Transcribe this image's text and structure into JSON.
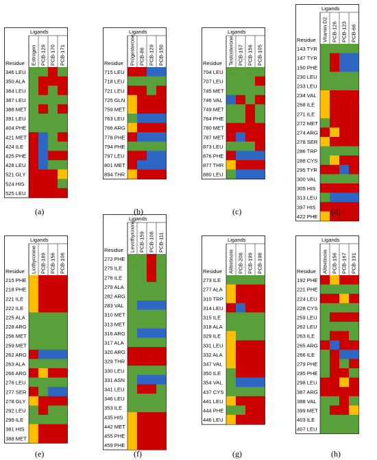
{
  "colors": {
    "green": "#5aa03a",
    "red": "#cc0000",
    "blue": "#2e66c4",
    "yellow": "#ffbf00"
  },
  "common": {
    "ligands_header": "Ligands",
    "residue_header": "Residue"
  },
  "panels": [
    {
      "caption": "(a)",
      "ligands": [
        "Estrogen",
        "PCB-129",
        "PCB-170",
        "PCB-171"
      ],
      "residues": [
        "346 LEU",
        "350 ALA",
        "384 LEU",
        "387 LEU",
        "388 MET",
        "391 LEU",
        "404 PHE",
        "421 MET",
        "424 ILE",
        "425 PHE",
        "428 LEU",
        "521 GLY",
        "524 HIS",
        "525 LEU"
      ],
      "cells": [
        [
          "G",
          "G",
          "R",
          "G"
        ],
        [
          "G",
          "R",
          "R",
          "R"
        ],
        [
          "G",
          "R",
          "G",
          "R"
        ],
        [
          "G",
          "G",
          "G",
          "G"
        ],
        [
          "G",
          "R",
          "G",
          "R"
        ],
        [
          "G",
          "G",
          "G",
          "G"
        ],
        [
          "G",
          "G",
          "G",
          "G"
        ],
        [
          "R",
          "B",
          "G",
          "R"
        ],
        [
          "R",
          "B",
          "G",
          "G"
        ],
        [
          "R",
          "B",
          "R",
          "R"
        ],
        [
          "R",
          "B",
          "G",
          "G"
        ],
        [
          "R",
          "R",
          "R",
          "Y"
        ],
        [
          "R",
          "R",
          "R",
          "G"
        ],
        [
          "R",
          "R",
          "R",
          "R"
        ]
      ]
    },
    {
      "caption": "(b)",
      "ligands": [
        "Progesterone",
        "PCB-86",
        "PCB-129",
        "PCB-150"
      ],
      "residues": [
        "715 LEU",
        "718 LEU",
        "721 LEU",
        "725 GLN",
        "759 MET",
        "763 LEU",
        "766 ARG",
        "778 PHE",
        "794 PHE",
        "797 LEU",
        "801 MET",
        "894 THR"
      ],
      "cells": [
        [
          "R",
          "R",
          "B",
          "B"
        ],
        [
          "G",
          "G",
          "G",
          "G"
        ],
        [
          "R",
          "R",
          "G",
          "R"
        ],
        [
          "Y",
          "R",
          "R",
          "R"
        ],
        [
          "Y",
          "R",
          "R",
          "R"
        ],
        [
          "G",
          "B",
          "B",
          "B"
        ],
        [
          "Y",
          "R",
          "R",
          "R"
        ],
        [
          "R",
          "B",
          "B",
          "B"
        ],
        [
          "G",
          "G",
          "G",
          "G"
        ],
        [
          "R",
          "R",
          "B",
          "B"
        ],
        [
          "R",
          "B",
          "B",
          "B"
        ],
        [
          "Y",
          "R",
          "R",
          "R"
        ]
      ]
    },
    {
      "caption": "(c)",
      "ligands": [
        "Testosterone",
        "PCB-157",
        "PCB-156",
        "PCB-105"
      ],
      "residues": [
        "704 LEU",
        "707 LEU",
        "745 MET",
        "746 VAL",
        "749 MET",
        "764 PHE",
        "780 MET",
        "787 MET",
        "873 LEU",
        "876 PHE",
        "877 THR",
        "880 LEU"
      ],
      "cells": [
        [
          "G",
          "G",
          "G",
          "G"
        ],
        [
          "G",
          "G",
          "G",
          "R"
        ],
        [
          "G",
          "G",
          "G",
          "G"
        ],
        [
          "B",
          "R",
          "G",
          "R"
        ],
        [
          "G",
          "G",
          "R",
          "G"
        ],
        [
          "G",
          "G",
          "R",
          "G"
        ],
        [
          "R",
          "R",
          "R",
          "R"
        ],
        [
          "R",
          "B",
          "R",
          "R"
        ],
        [
          "G",
          "G",
          "G",
          "R"
        ],
        [
          "R",
          "B",
          "B",
          "B"
        ],
        [
          "Y",
          "R",
          "R",
          "R"
        ],
        [
          "G",
          "B",
          "B",
          "B"
        ]
      ]
    },
    {
      "caption": "(d)",
      "ligands": [
        "Vitamin D2",
        "PCB-126",
        "PCB-123",
        "PCB-66"
      ],
      "residues": [
        "143 TYR",
        "147 TYR",
        "150 PHE",
        "230 LEU",
        "233 LEU",
        "234 VAL",
        "268 ILE",
        "271 ILE",
        "272 MET",
        "274 ARG",
        "278 SER",
        "286 TRP",
        "288 CYS",
        "295 TYR",
        "300 VAL",
        "305 HIS",
        "313 LEU",
        "397 HIS",
        "422 PHE"
      ],
      "cells": [
        [
          "G",
          "G",
          "G",
          "G"
        ],
        [
          "G",
          "R",
          "B",
          "B"
        ],
        [
          "G",
          "R",
          "B",
          "B"
        ],
        [
          "G",
          "G",
          "G",
          "G"
        ],
        [
          "G",
          "G",
          "G",
          "G"
        ],
        [
          "Y",
          "R",
          "R",
          "R"
        ],
        [
          "Y",
          "R",
          "R",
          "R"
        ],
        [
          "Y",
          "R",
          "R",
          "R"
        ],
        [
          "G",
          "R",
          "R",
          "R"
        ],
        [
          "R",
          "Y",
          "R",
          "R"
        ],
        [
          "Y",
          "R",
          "R",
          "R"
        ],
        [
          "G",
          "G",
          "G",
          "G"
        ],
        [
          "G",
          "Y",
          "R",
          "R"
        ],
        [
          "R",
          "R",
          "B",
          "R"
        ],
        [
          "G",
          "G",
          "G",
          "G"
        ],
        [
          "R",
          "R",
          "R",
          "R"
        ],
        [
          "G",
          "B",
          "B",
          "B"
        ],
        [
          "R",
          "R",
          "R",
          "R"
        ],
        [
          "Y",
          "R",
          "R",
          "R"
        ]
      ]
    },
    {
      "caption": "(e)",
      "ligands": [
        "Liothyronine",
        "PCB-189",
        "PCB-156",
        "PCB-106"
      ],
      "residues": [
        "215 PHE",
        "218 PHE",
        "221 ILE",
        "222 ILE",
        "225 ALA",
        "228 ARG",
        "256 MET",
        "259 MET",
        "262 ARG",
        "263 ALA",
        "266 ARG",
        "276 LEU",
        "277 SER",
        "278 GLY",
        "292 LEU",
        "299 ILE",
        "381 HIS",
        "388 MET"
      ],
      "cells": [
        [
          "Y",
          "R",
          "R",
          "R"
        ],
        [
          "Y",
          "R",
          "R",
          "R"
        ],
        [
          "Y",
          "R",
          "R",
          "R"
        ],
        [
          "Y",
          "R",
          "R",
          "R"
        ],
        [
          "G",
          "G",
          "G",
          "G"
        ],
        [
          "G",
          "G",
          "G",
          "G"
        ],
        [
          "G",
          "G",
          "G",
          "G"
        ],
        [
          "G",
          "G",
          "G",
          "G"
        ],
        [
          "R",
          "B",
          "B",
          "B"
        ],
        [
          "G",
          "G",
          "G",
          "G"
        ],
        [
          "R",
          "Y",
          "R",
          "R"
        ],
        [
          "G",
          "G",
          "G",
          "G"
        ],
        [
          "R",
          "G",
          "B",
          "B"
        ],
        [
          "Y",
          "R",
          "R",
          "R"
        ],
        [
          "G",
          "R",
          "G",
          "G"
        ],
        [
          "G",
          "G",
          "G",
          "G"
        ],
        [
          "Y",
          "R",
          "R",
          "R"
        ],
        [
          "Y",
          "R",
          "R",
          "R"
        ]
      ]
    },
    {
      "caption": "(f)",
      "ligands": [
        "Levothyroxine",
        "PCB-159",
        "PCB-108",
        "PCB-111"
      ],
      "residues": [
        "272 PHE",
        "275 ILE",
        "276 ILE",
        "279 ALA",
        "282 ARG",
        "283 VAL",
        "310 MET",
        "313 MET",
        "316 ARG",
        "317 ALA",
        "320 ARG",
        "329 THR",
        "330 LEU",
        "331 ASN",
        "341 LEU",
        "346 LEU",
        "353 ILE",
        "435 HIS",
        "442 MET",
        "455 PHE",
        "459 PHE"
      ],
      "cells": [
        [
          "G",
          "G",
          "R",
          "G"
        ],
        [
          "G",
          "G",
          "R",
          "G"
        ],
        [
          "G",
          "G",
          "R",
          "G"
        ],
        [
          "G",
          "G",
          "G",
          "G"
        ],
        [
          "G",
          "G",
          "G",
          "G"
        ],
        [
          "G",
          "B",
          "B",
          "B"
        ],
        [
          "G",
          "G",
          "G",
          "G"
        ],
        [
          "G",
          "G",
          "G",
          "G"
        ],
        [
          "G",
          "B",
          "B",
          "B"
        ],
        [
          "G",
          "G",
          "G",
          "G"
        ],
        [
          "R",
          "R",
          "R",
          "R"
        ],
        [
          "R",
          "R",
          "R",
          "R"
        ],
        [
          "G",
          "G",
          "G",
          "G"
        ],
        [
          "G",
          "B",
          "B",
          "B"
        ],
        [
          "G",
          "R",
          "R",
          "G"
        ],
        [
          "G",
          "G",
          "G",
          "G"
        ],
        [
          "G",
          "G",
          "G",
          "G"
        ],
        [
          "Y",
          "R",
          "R",
          "R"
        ],
        [
          "Y",
          "R",
          "R",
          "R"
        ],
        [
          "Y",
          "R",
          "R",
          "R"
        ],
        [
          "Y",
          "R",
          "R",
          "R"
        ]
      ]
    },
    {
      "caption": "(g)",
      "ligands": [
        "Alitretinoin",
        "PCB-208",
        "PCB-199",
        "PCB-198"
      ],
      "residues": [
        "273 ILE",
        "277 ALA",
        "310 TRP",
        "314 LEU",
        "315 ILE",
        "318 ALA",
        "329 ILE",
        "331 LEU",
        "332 ALA",
        "347 VAL",
        "350 ILE",
        "354 VAL",
        "437 CYS",
        "441 LEU",
        "444 PHE",
        "446 LEU"
      ],
      "cells": [
        [
          "G",
          "G",
          "G",
          "G"
        ],
        [
          "Y",
          "R",
          "R",
          "R"
        ],
        [
          "Y",
          "R",
          "R",
          "R"
        ],
        [
          "R",
          "B",
          "R",
          "R"
        ],
        [
          "G",
          "G",
          "G",
          "G"
        ],
        [
          "G",
          "G",
          "G",
          "G"
        ],
        [
          "Y",
          "G",
          "G",
          "G"
        ],
        [
          "Y",
          "R",
          "R",
          "R"
        ],
        [
          "Y",
          "R",
          "R",
          "R"
        ],
        [
          "Y",
          "R",
          "R",
          "R"
        ],
        [
          "G",
          "R",
          "R",
          "R"
        ],
        [
          "G",
          "B",
          "B",
          "B"
        ],
        [
          "G",
          "G",
          "G",
          "G"
        ],
        [
          "Y",
          "R",
          "R",
          "R"
        ],
        [
          "G",
          "G",
          "R",
          "R"
        ],
        [
          "Y",
          "R",
          "R",
          "R"
        ]
      ]
    },
    {
      "caption": "(h)",
      "ligands": [
        "Alitretinoin",
        "PCB-156",
        "PCB-167",
        "PCB-191"
      ],
      "residues": [
        "192 PHE",
        "221 PHE",
        "224 LEU",
        "228 CYS",
        "259 LEU",
        "262 LEU",
        "263 ILE",
        "265 ARG",
        "266 ILE",
        "279 PHE",
        "295 PHE",
        "298 LEU",
        "387 ARG",
        "388 VAL",
        "399 MET",
        "403 ILE",
        "407 LEU"
      ],
      "cells": [
        [
          "R",
          "Y",
          "R",
          "R"
        ],
        [
          "G",
          "G",
          "G",
          "G"
        ],
        [
          "R",
          "R",
          "Y",
          "R"
        ],
        [
          "G",
          "G",
          "G",
          "G"
        ],
        [
          "G",
          "R",
          "R",
          "R"
        ],
        [
          "G",
          "G",
          "G",
          "G"
        ],
        [
          "G",
          "R",
          "R",
          "G"
        ],
        [
          "R",
          "B",
          "R",
          "R"
        ],
        [
          "G",
          "R",
          "B",
          "B"
        ],
        [
          "G",
          "R",
          "G",
          "R"
        ],
        [
          "G",
          "R",
          "R",
          "G"
        ],
        [
          "R",
          "R",
          "Y",
          "R"
        ],
        [
          "R",
          "R",
          "R",
          "R"
        ],
        [
          "G",
          "G",
          "R",
          "G"
        ],
        [
          "G",
          "R",
          "R",
          "Y"
        ],
        [
          "G",
          "G",
          "G",
          "G"
        ],
        [
          "G",
          "G",
          "G",
          "G"
        ]
      ]
    }
  ]
}
